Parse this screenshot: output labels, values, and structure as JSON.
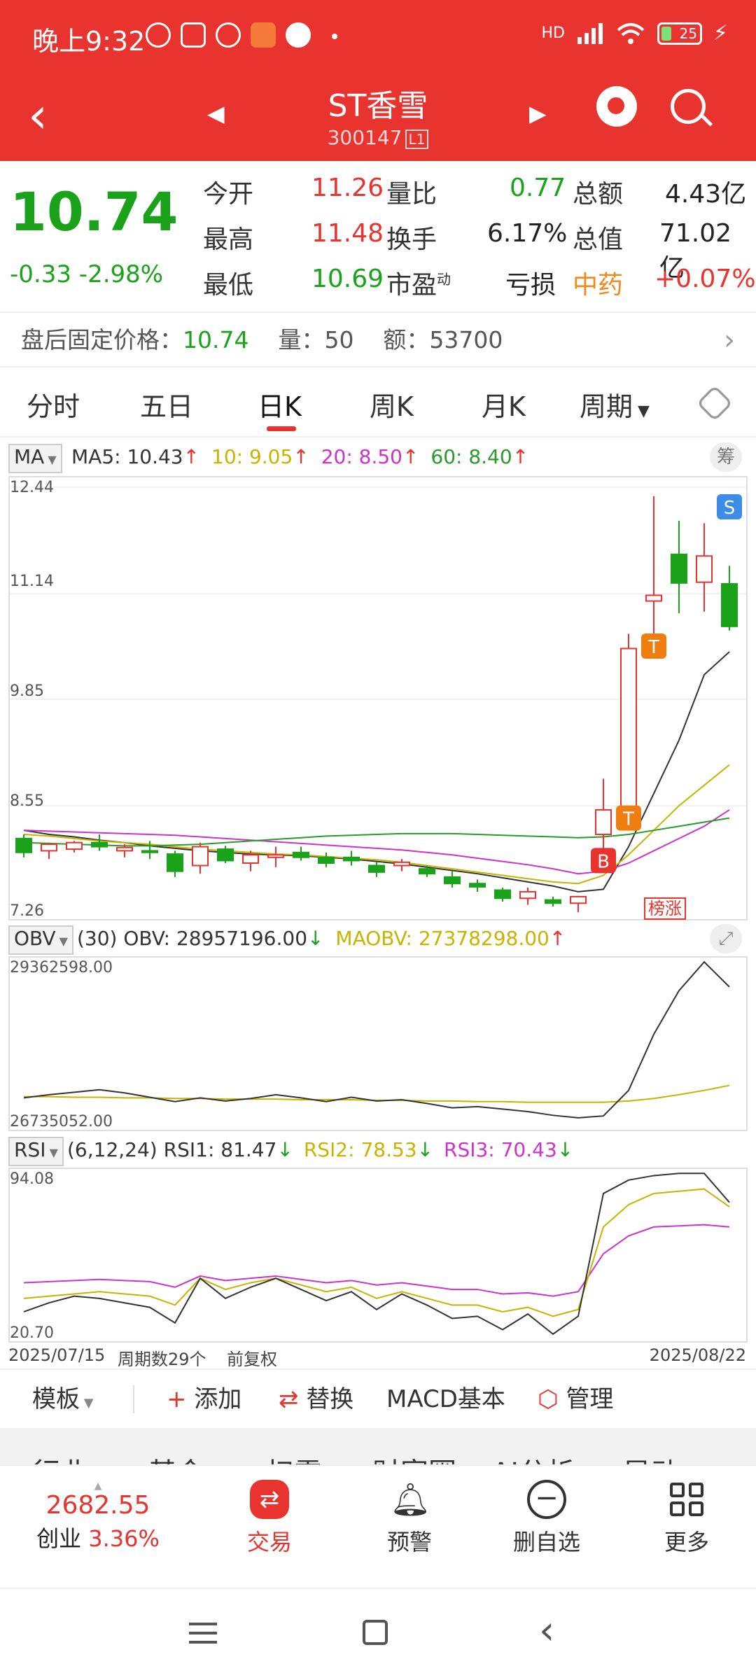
{
  "status": {
    "time": "晚上9:32",
    "network": "HD",
    "battery": "25"
  },
  "header": {
    "title": "ST香雪",
    "code": "300147",
    "level": "L1"
  },
  "quote": {
    "price": "10.74",
    "change": "-0.33",
    "change_pct": "-2.98%",
    "rows": [
      {
        "l1": "今开",
        "v1": "11.26",
        "l2": "量比",
        "v2": "0.77",
        "l3": "总额",
        "v3": "4.43亿"
      },
      {
        "l1": "最高",
        "v1": "11.48",
        "l2": "换手",
        "v2": "6.17%",
        "l3": "总值",
        "v3": "71.02亿"
      },
      {
        "l1": "最低",
        "v1": "10.69",
        "l2": "市盈",
        "v2": "亏损",
        "l3": "中药",
        "v3": "+0.07%"
      }
    ],
    "pe_sup": "动"
  },
  "afterhours": {
    "label": "盘后固定价格：",
    "price": "10.74",
    "vol_label": "量：",
    "vol": "50",
    "amt_label": "额：",
    "amt": "53700"
  },
  "tabs": [
    "分时",
    "五日",
    "日K",
    "周K",
    "月K",
    "周期"
  ],
  "ma_legend": {
    "tag": "MA",
    "ma5": "MA5: 10.43",
    "ma10": "10: 9.05",
    "ma20": "20: 8.50",
    "ma60": "60: 8.40",
    "chip": "筹"
  },
  "kline": {
    "y_labels": [
      "12.44",
      "11.14",
      "9.85",
      "8.55",
      "7.26"
    ],
    "markers": {
      "b": "B",
      "t": "T",
      "s": "S",
      "badge": "榜涨"
    }
  },
  "obv_legend": {
    "tag": "OBV",
    "params": "(30)",
    "obv": "OBV: 28957196.00",
    "maobv": "MAOBV: 27378298.00",
    "y_top": "29362598.00",
    "y_bottom": "26735052.00"
  },
  "rsi_legend": {
    "tag": "RSI",
    "params": "(6,12,24)",
    "rsi1": "RSI1: 81.47",
    "rsi2": "RSI2: 78.53",
    "rsi3": "RSI3: 70.43",
    "y_top": "94.08",
    "y_bottom": "20.70"
  },
  "date_row": {
    "start": "2025/07/15",
    "count": "周期数29个",
    "adj": "前复权",
    "end": "2025/08/22"
  },
  "toolbar": {
    "template": "模板",
    "add": "添加",
    "replace": "替换",
    "macd": "MACD基本",
    "manage": "管理"
  },
  "categories": [
    "行业",
    "基金",
    "扫雷",
    "财富圈",
    "AI分析",
    "异动"
  ],
  "bottom_nav": {
    "index_value": "2682.55",
    "index_name": "创业",
    "index_pct": "3.36%",
    "items": [
      "交易",
      "预警",
      "删自选",
      "更多"
    ]
  },
  "colors": {
    "brand_red": "#e8332f",
    "down_green": "#1aa31a",
    "ma5": "#333333",
    "ma10": "#c8b400",
    "ma20": "#cc33cc",
    "ma60": "#2a9a2a"
  },
  "chart_data": {
    "type": "candlestick",
    "y_range": [
      7.26,
      12.44
    ],
    "candles": [
      {
        "o": 8.15,
        "h": 8.2,
        "l": 7.92,
        "c": 7.98
      },
      {
        "o": 8.0,
        "h": 8.1,
        "l": 7.9,
        "c": 8.08
      },
      {
        "o": 8.02,
        "h": 8.12,
        "l": 7.98,
        "c": 8.1
      },
      {
        "o": 8.1,
        "h": 8.2,
        "l": 8.0,
        "c": 8.05
      },
      {
        "o": 8.0,
        "h": 8.08,
        "l": 7.92,
        "c": 8.04
      },
      {
        "o": 8.0,
        "h": 8.12,
        "l": 7.9,
        "c": 7.98
      },
      {
        "o": 7.96,
        "h": 8.0,
        "l": 7.68,
        "c": 7.75
      },
      {
        "o": 7.82,
        "h": 8.1,
        "l": 7.72,
        "c": 8.05
      },
      {
        "o": 8.02,
        "h": 8.06,
        "l": 7.85,
        "c": 7.88
      },
      {
        "o": 7.85,
        "h": 8.0,
        "l": 7.75,
        "c": 7.95
      },
      {
        "o": 7.92,
        "h": 8.05,
        "l": 7.8,
        "c": 7.95
      },
      {
        "o": 7.98,
        "h": 8.05,
        "l": 7.88,
        "c": 7.92
      },
      {
        "o": 7.92,
        "h": 7.98,
        "l": 7.8,
        "c": 7.85
      },
      {
        "o": 7.92,
        "h": 8.0,
        "l": 7.82,
        "c": 7.88
      },
      {
        "o": 7.82,
        "h": 7.86,
        "l": 7.68,
        "c": 7.74
      },
      {
        "o": 7.82,
        "h": 7.9,
        "l": 7.75,
        "c": 7.86
      },
      {
        "o": 7.78,
        "h": 7.82,
        "l": 7.68,
        "c": 7.72
      },
      {
        "o": 7.68,
        "h": 7.75,
        "l": 7.55,
        "c": 7.6
      },
      {
        "o": 7.6,
        "h": 7.65,
        "l": 7.5,
        "c": 7.56
      },
      {
        "o": 7.52,
        "h": 7.55,
        "l": 7.38,
        "c": 7.42
      },
      {
        "o": 7.42,
        "h": 7.55,
        "l": 7.34,
        "c": 7.5
      },
      {
        "o": 7.4,
        "h": 7.44,
        "l": 7.32,
        "c": 7.36
      },
      {
        "o": 7.36,
        "h": 7.45,
        "l": 7.25,
        "c": 7.44
      },
      {
        "o": 8.2,
        "h": 8.88,
        "l": 8.0,
        "c": 8.5
      },
      {
        "o": 8.5,
        "h": 10.65,
        "l": 8.4,
        "c": 10.47
      },
      {
        "o": 11.05,
        "h": 12.33,
        "l": 10.5,
        "c": 11.12
      },
      {
        "o": 11.62,
        "h": 12.03,
        "l": 10.9,
        "c": 11.27
      },
      {
        "o": 11.28,
        "h": 12.0,
        "l": 10.92,
        "c": 11.6
      },
      {
        "o": 11.26,
        "h": 11.48,
        "l": 10.69,
        "c": 10.74
      }
    ],
    "series": [
      {
        "name": "MA5",
        "values": [
          8.25,
          8.2,
          8.17,
          8.13,
          8.1,
          8.06,
          8.03,
          8.0,
          7.98,
          7.96,
          7.95,
          7.94,
          7.92,
          7.9,
          7.87,
          7.84,
          7.8,
          7.76,
          7.72,
          7.67,
          7.62,
          7.57,
          7.5,
          7.53,
          8.05,
          8.7,
          9.35,
          10.15,
          10.43
        ]
      },
      {
        "name": "10",
        "values": [
          8.2,
          8.18,
          8.15,
          8.12,
          8.1,
          8.08,
          8.05,
          8.02,
          8.0,
          7.98,
          7.96,
          7.95,
          7.93,
          7.91,
          7.89,
          7.86,
          7.82,
          7.78,
          7.74,
          7.7,
          7.66,
          7.62,
          7.6,
          7.7,
          7.95,
          8.25,
          8.55,
          8.8,
          9.05
        ]
      },
      {
        "name": "20",
        "values": [
          8.25,
          8.24,
          8.23,
          8.22,
          8.21,
          8.2,
          8.19,
          8.17,
          8.15,
          8.13,
          8.11,
          8.09,
          8.07,
          8.05,
          8.03,
          8.01,
          7.98,
          7.95,
          7.91,
          7.87,
          7.83,
          7.78,
          7.72,
          7.75,
          7.85,
          8.0,
          8.15,
          8.3,
          8.5
        ]
      },
      {
        "name": "60",
        "values": [
          8.1,
          8.09,
          8.08,
          8.07,
          8.06,
          8.06,
          8.07,
          8.08,
          8.1,
          8.12,
          8.14,
          8.16,
          8.18,
          8.19,
          8.2,
          8.21,
          8.21,
          8.21,
          8.2,
          8.19,
          8.18,
          8.17,
          8.16,
          8.17,
          8.2,
          8.25,
          8.3,
          8.35,
          8.4
        ]
      }
    ],
    "obv": {
      "range": [
        26735052,
        29362598
      ],
      "obv": [
        27180000,
        27230000,
        27270000,
        27310000,
        27260000,
        27190000,
        27120000,
        27180000,
        27130000,
        27170000,
        27230000,
        27180000,
        27120000,
        27190000,
        27130000,
        27150000,
        27090000,
        27020000,
        27040000,
        27000000,
        26960000,
        26900000,
        26860000,
        26890000,
        27300000,
        28200000,
        28900000,
        29360000,
        28960000
      ],
      "maobv": [
        27200000,
        27200000,
        27190000,
        27190000,
        27180000,
        27180000,
        27170000,
        27170000,
        27160000,
        27160000,
        27160000,
        27150000,
        27150000,
        27150000,
        27140000,
        27140000,
        27130000,
        27130000,
        27120000,
        27120000,
        27110000,
        27110000,
        27110000,
        27110000,
        27130000,
        27170000,
        27230000,
        27300000,
        27380000
      ]
    },
    "rsi": {
      "range": [
        20.7,
        94.08
      ],
      "rsi1": [
        32,
        36,
        39,
        38,
        36,
        34,
        27,
        47,
        38,
        43,
        47,
        42,
        37,
        41,
        33,
        40,
        35,
        29,
        30,
        24,
        31,
        22,
        30,
        85,
        91,
        93,
        94,
        94,
        81
      ],
      "rsi2": [
        38,
        39,
        40,
        41,
        40,
        39,
        35,
        47,
        42,
        45,
        47,
        44,
        41,
        43,
        38,
        41,
        38,
        35,
        35,
        32,
        34,
        30,
        33,
        70,
        80,
        85,
        86,
        87,
        79
      ],
      "rsi3": [
        45,
        45.5,
        46,
        46.5,
        46,
        45.5,
        43,
        48,
        46,
        47,
        48,
        46.5,
        45,
        46,
        44,
        45,
        43.5,
        42,
        42,
        40,
        40.5,
        39,
        41,
        58,
        66,
        70,
        70.5,
        71,
        70
      ]
    }
  }
}
